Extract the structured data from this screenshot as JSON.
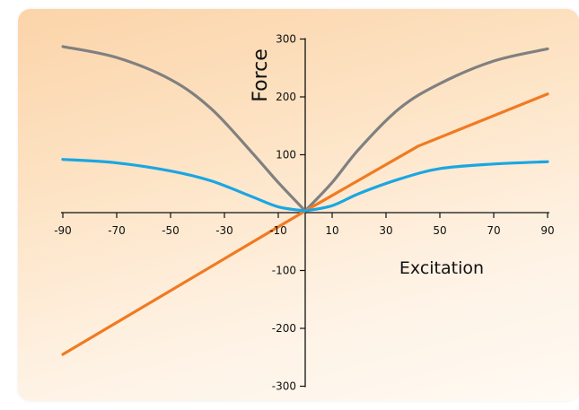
{
  "chart_data": {
    "type": "line",
    "xlabel": "Excitation",
    "ylabel": "Force",
    "xlim": [
      -90,
      90
    ],
    "ylim": [
      -300,
      300
    ],
    "x_ticks": [
      -90,
      -70,
      -50,
      -30,
      -10,
      10,
      30,
      50,
      70,
      90
    ],
    "y_ticks": [
      300,
      200,
      100,
      -100,
      -200,
      -300
    ],
    "grid": false,
    "series": [
      {
        "color": "#808080",
        "x": [
          -90,
          -70,
          -50,
          -35,
          -20,
          -10,
          0,
          10,
          20,
          35,
          50,
          70,
          90
        ],
        "y": [
          287,
          268,
          230,
          180,
          105,
          52,
          3,
          52,
          110,
          180,
          223,
          262,
          283
        ]
      },
      {
        "color": "#f07a22",
        "x": [
          -90,
          0,
          42,
          90
        ],
        "y": [
          -245,
          3,
          115,
          205
        ]
      },
      {
        "color": "#1aa6e2",
        "x": [
          -90,
          -70,
          -50,
          -35,
          -20,
          -10,
          0,
          10,
          20,
          35,
          50,
          70,
          90
        ],
        "y": [
          92,
          86,
          72,
          55,
          28,
          10,
          3,
          12,
          33,
          58,
          76,
          84,
          88
        ]
      }
    ]
  }
}
